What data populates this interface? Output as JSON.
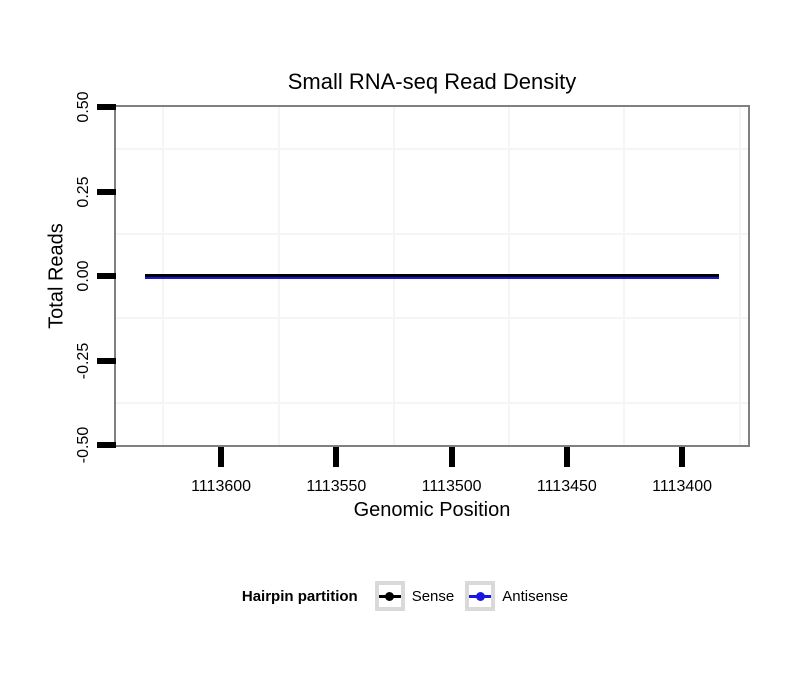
{
  "title": "Small RNA-seq Read Density",
  "legend": {
    "title": "Hairpin partition",
    "items": [
      {
        "label": "Sense",
        "color": "#000000"
      },
      {
        "label": "Antisense",
        "color": "#1717E0"
      }
    ]
  },
  "colors": {
    "background": "#FFFFFF",
    "panel_border": "#808080",
    "gridline_minor": "#F5F5F5",
    "tick": "#000000",
    "legend_key_frame": "#D9D9D9",
    "sense_line": "#000000",
    "antisense_line": "#1717E0"
  },
  "chart_data": {
    "type": "line",
    "title": "Small RNA-seq Read Density",
    "xlabel": "Genomic Position",
    "ylabel": "Total Reads",
    "x_reversed": true,
    "xlim": [
      1113645.6,
      1113371.4
    ],
    "ylim": [
      -0.5,
      0.5
    ],
    "x_tick_values": [
      1113600,
      1113550,
      1113500,
      1113450,
      1113400
    ],
    "x_minor_gridlines": [
      1113625,
      1113575,
      1113525,
      1113475,
      1113425,
      1113375
    ],
    "y_tick_values": [
      0.5,
      0.25,
      0,
      -0.25,
      -0.5
    ],
    "y_tick_labels": [
      "0.50",
      "0.25",
      "0.00",
      "-0.25",
      "-0.50"
    ],
    "y_minor_gridlines": [
      0.375,
      0.125,
      -0.125,
      -0.375
    ],
    "grid": "minor gridlines only, very light gray; white panel",
    "legend_title": "Hairpin partition",
    "legend_position": "bottom",
    "series": [
      {
        "name": "Sense",
        "color": "#000000",
        "x": [
          1113633,
          1113384
        ],
        "y": [
          0,
          0
        ]
      },
      {
        "name": "Antisense",
        "color": "#1717E0",
        "x": [
          1113633,
          1113384
        ],
        "y": [
          0,
          0
        ]
      }
    ]
  }
}
